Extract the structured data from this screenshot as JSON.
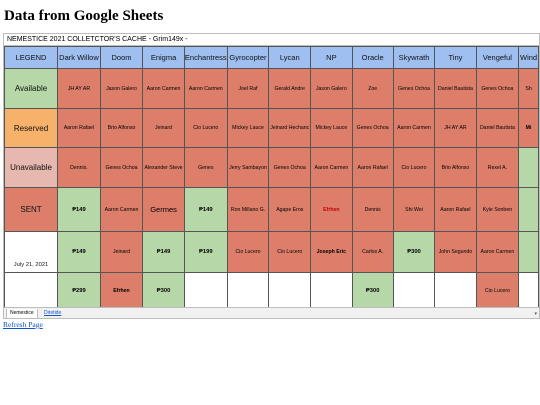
{
  "page": {
    "title": "Data from Google Sheets",
    "refresh_link": "Refresh Page"
  },
  "sheet": {
    "caption": "NEMESTICE 2021 COLLETCTOR'S CACHE - Grim149x -",
    "legend_header": "LEGEND",
    "columns": [
      "Dark Willow",
      "Doom",
      "Enigma",
      "Enchantress",
      "Gyrocopter",
      "Lycan",
      "NP",
      "Oracle",
      "Skywrath",
      "Tiny",
      "Vengeful",
      "Wind"
    ],
    "legend": [
      {
        "label": "Available",
        "color": "#b6d7a8"
      },
      {
        "label": "Reserved",
        "color": "#f6b26b"
      },
      {
        "label": "Unavailable",
        "color": "#e6b8af"
      },
      {
        "label": "SENT",
        "color": "#dd7e6b"
      },
      {
        "label": "July 21, 2021",
        "color": "#ffffff"
      },
      {
        "label": "",
        "color": "#ffffff"
      }
    ],
    "colors": {
      "available": "#b6d7a8",
      "sent": "#dd7e6b",
      "empty": "#ffffff",
      "header": "#9fbff0"
    },
    "rows": [
      [
        [
          "JH AY AR",
          "s"
        ],
        [
          "Jason Galero",
          "s"
        ],
        [
          "Aaron Carmen",
          "s"
        ],
        [
          "Aaron Carmen",
          "s"
        ],
        [
          "Joel Raf",
          "s"
        ],
        [
          "Gerald Andre",
          "s"
        ],
        [
          "Jason Galero",
          "s"
        ],
        [
          "Zoe",
          "s"
        ],
        [
          "Genes Ochoa",
          "s"
        ],
        [
          "Daniel Bautista",
          "s"
        ],
        [
          "Genes Ochoa",
          "s"
        ],
        [
          "Sh",
          "s"
        ]
      ],
      [
        [
          "Aaron Rafael",
          "s"
        ],
        [
          "Brio Alfonso",
          "s"
        ],
        [
          "Jeinard",
          "s"
        ],
        [
          "Cio Lucero",
          "s"
        ],
        [
          "Mickey Lauce",
          "s"
        ],
        [
          "Jeinard Hechanc",
          "s"
        ],
        [
          "Mickey Lauce",
          "s"
        ],
        [
          "Genes Ochoa",
          "s"
        ],
        [
          "Aaron Carmen",
          "s"
        ],
        [
          "JH AY AR",
          "s"
        ],
        [
          "Daniel Bautista",
          "s"
        ],
        [
          "Mi",
          "s"
        ]
      ],
      [
        [
          "Dennis.",
          "s"
        ],
        [
          "Genes Ochoa",
          "s"
        ],
        [
          "Alexander Steve",
          "s"
        ],
        [
          "Genes",
          "s"
        ],
        [
          "Jerry Sambayon",
          "s"
        ],
        [
          "Genes Ochoa",
          "s"
        ],
        [
          "Aaron Carmen",
          "s"
        ],
        [
          "Aaron Rafael",
          "s"
        ],
        [
          "Cio Lucero",
          "s"
        ],
        [
          "Brio Alfonso",
          "s"
        ],
        [
          "Rexel A.",
          "s"
        ],
        [
          "",
          "a"
        ]
      ],
      [
        [
          "₱149",
          "a"
        ],
        [
          "Aaron Carmen",
          "s"
        ],
        [
          "Germes",
          "s"
        ],
        [
          "₱149",
          "a"
        ],
        [
          "Ron Millano G.",
          "s"
        ],
        [
          "Agape Eros",
          "s"
        ],
        [
          "Efrhen",
          "s"
        ],
        [
          "Dennis",
          "s"
        ],
        [
          "Shi Wei",
          "s"
        ],
        [
          "Aaron Rafael",
          "s"
        ],
        [
          "Kyle Sonben",
          "s"
        ],
        [
          "",
          "a"
        ]
      ],
      [
        [
          "₱149",
          "a"
        ],
        [
          "Jeinard",
          "s"
        ],
        [
          "₱149",
          "a"
        ],
        [
          "₱199",
          "a"
        ],
        [
          "Cio Lucero",
          "s"
        ],
        [
          "Cio Lucero",
          "s"
        ],
        [
          "Joseph Eric",
          "s"
        ],
        [
          "Carlos A.",
          "s"
        ],
        [
          "₱300",
          "a"
        ],
        [
          "John Segundo",
          "s"
        ],
        [
          "Aaron Carmen",
          "s"
        ],
        [
          "",
          "a"
        ]
      ],
      [
        [
          "₱299",
          "a"
        ],
        [
          "Efrhen",
          "s"
        ],
        [
          "₱300",
          "a"
        ],
        [
          "",
          "e"
        ],
        [
          "",
          "e"
        ],
        [
          "",
          "e"
        ],
        [
          "",
          "e"
        ],
        [
          "₱300",
          "a"
        ],
        [
          "",
          "e"
        ],
        [
          "",
          "e"
        ],
        [
          "Cio Lucero",
          "s"
        ],
        [
          "",
          "e"
        ]
      ]
    ]
  },
  "tabs": [
    {
      "label": "Nemestice",
      "active": true
    },
    {
      "label": "Diretide",
      "active": false
    }
  ]
}
